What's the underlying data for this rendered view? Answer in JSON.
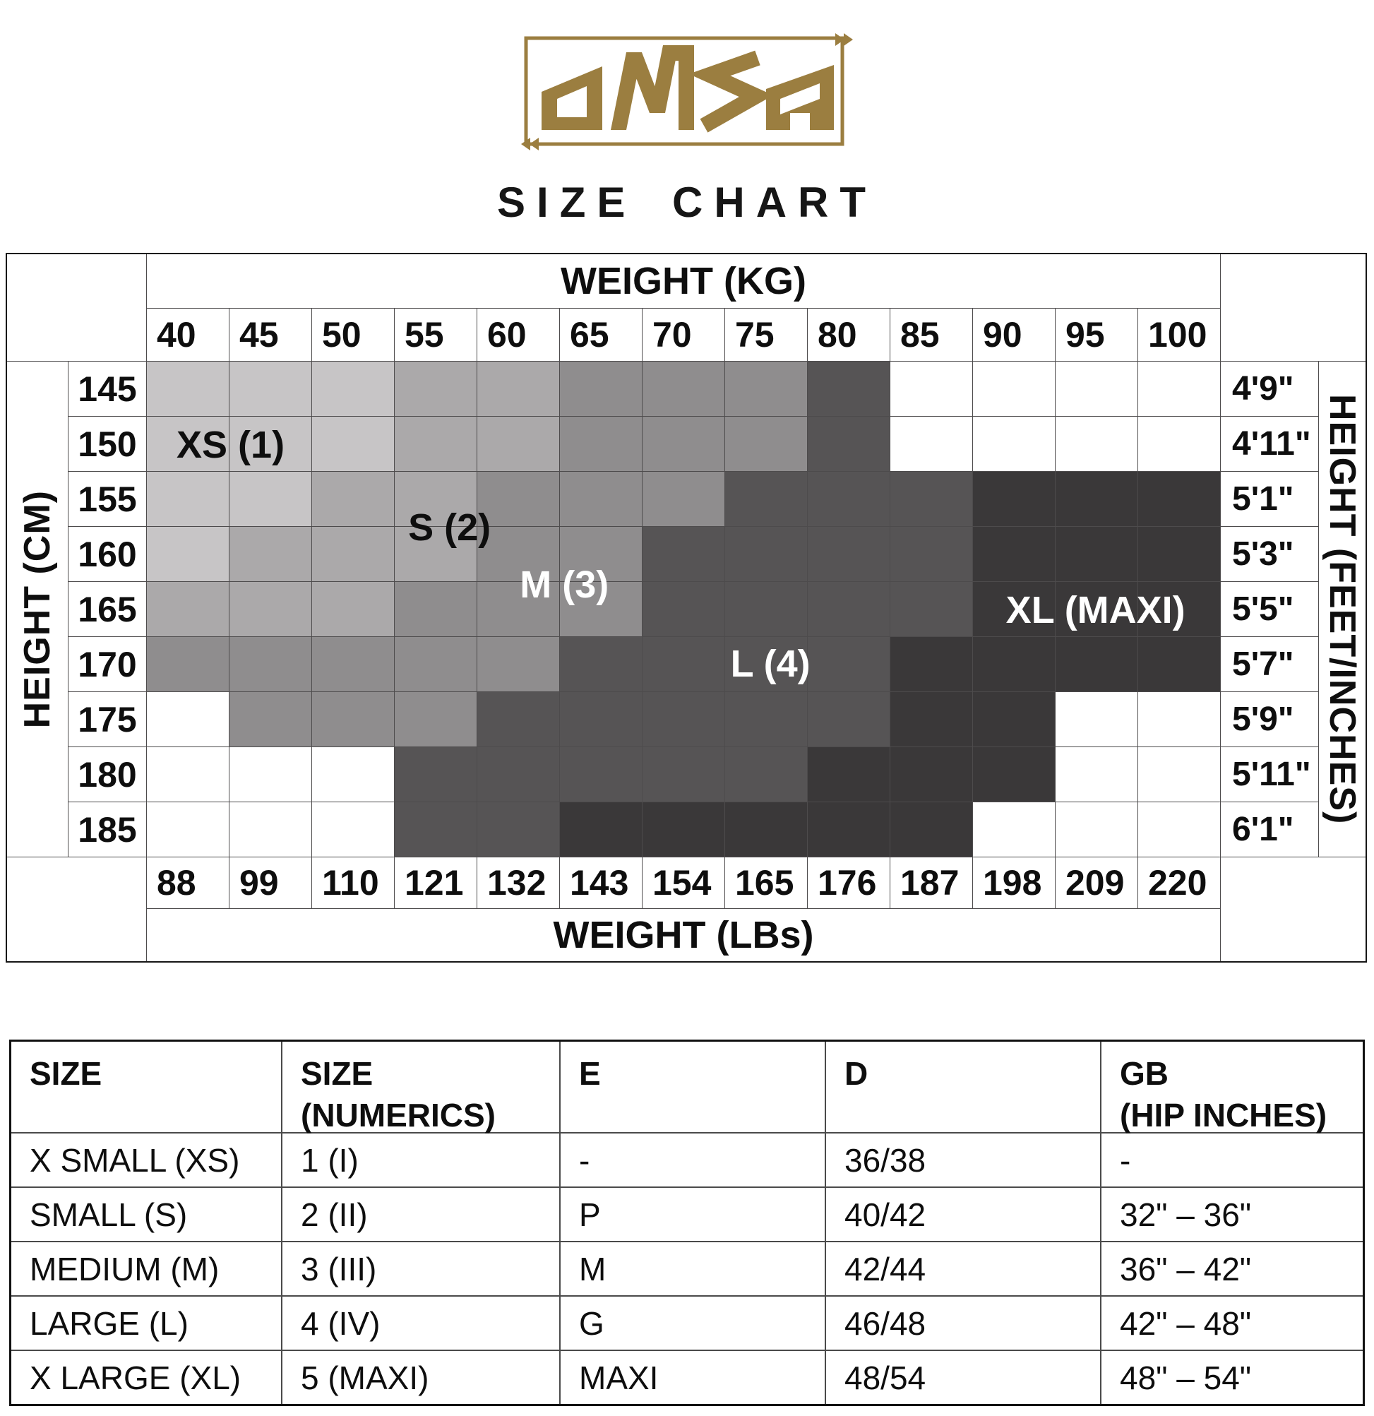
{
  "brand": {
    "name": "OMSA",
    "color": "#9B7E40"
  },
  "title": "SIZE CHART",
  "chart_data": {
    "type": "heatmap",
    "title": "SIZE CHART",
    "x_axis_top": {
      "label": "WEIGHT (KG)",
      "ticks": [
        "40",
        "45",
        "50",
        "55",
        "60",
        "65",
        "70",
        "75",
        "80",
        "85",
        "90",
        "95",
        "100"
      ]
    },
    "x_axis_bottom": {
      "label": "WEIGHT (LBs)",
      "ticks": [
        "88",
        "99",
        "110",
        "121",
        "132",
        "143",
        "154",
        "165",
        "176",
        "187",
        "198",
        "209",
        "220"
      ]
    },
    "y_axis_left": {
      "label": "HEIGHT (CM)",
      "ticks": [
        "145",
        "150",
        "155",
        "160",
        "165",
        "170",
        "175",
        "180",
        "185"
      ]
    },
    "y_axis_right": {
      "label": "HEIGHT (FEET/INCHES)",
      "ticks": [
        "4'9\"",
        "4'11\"",
        "5'1\"",
        "5'3\"",
        "5'5\"",
        "5'7\"",
        "5'9\"",
        "5'11\"",
        "6'1\""
      ]
    },
    "grid_on": true,
    "legend_position": "labels-inside-regions",
    "empty_color": "#FFFFFF",
    "palette": {
      "0": "#FFFFFF",
      "1": "#C7C5C6",
      "2": "#ABA9AA",
      "3": "#8F8D8E",
      "4": "#565455",
      "5": "#3A3839"
    },
    "sizes": [
      {
        "code": 1,
        "label": "XS (1)",
        "color": "#C7C5C6",
        "label_color": "#0e0e0e",
        "label_x": "7.8%",
        "label_y": "16.8%"
      },
      {
        "code": 2,
        "label": "S (2)",
        "color": "#ABA9AA",
        "label_color": "#0e0e0e",
        "label_x": "28.2%",
        "label_y": "33.5%"
      },
      {
        "code": 3,
        "label": "M (3)",
        "color": "#8F8D8E",
        "label_color": "#FFFFFF",
        "label_x": "38.9%",
        "label_y": "45.1%"
      },
      {
        "code": 4,
        "label": "L (4)",
        "color": "#565455",
        "label_color": "#FFFFFF",
        "label_x": "58.1%",
        "label_y": "61.1%"
      },
      {
        "code": 5,
        "label": "XL (MAXI)",
        "color": "#3A3839",
        "label_color": "#FFFFFF",
        "label_x": "88.4%",
        "label_y": "50.2%"
      }
    ],
    "matrix_rows_cm": [
      "145",
      "150",
      "155",
      "160",
      "165",
      "170",
      "175",
      "180",
      "185"
    ],
    "matrix_cols_kg": [
      "40",
      "45",
      "50",
      "55",
      "60",
      "65",
      "70",
      "75",
      "80",
      "85",
      "90",
      "95",
      "100"
    ],
    "matrix": [
      [
        1,
        1,
        1,
        2,
        2,
        3,
        3,
        3,
        4,
        0,
        0,
        0,
        0
      ],
      [
        1,
        1,
        1,
        2,
        2,
        3,
        3,
        3,
        4,
        0,
        0,
        0,
        0
      ],
      [
        1,
        1,
        2,
        2,
        3,
        3,
        3,
        4,
        4,
        4,
        5,
        5,
        5
      ],
      [
        1,
        2,
        2,
        2,
        3,
        3,
        4,
        4,
        4,
        4,
        5,
        5,
        5
      ],
      [
        2,
        2,
        2,
        3,
        3,
        3,
        4,
        4,
        4,
        4,
        5,
        5,
        5
      ],
      [
        3,
        3,
        3,
        3,
        3,
        4,
        4,
        4,
        4,
        5,
        5,
        5,
        5
      ],
      [
        0,
        3,
        3,
        3,
        4,
        4,
        4,
        4,
        4,
        5,
        5,
        0,
        0
      ],
      [
        0,
        0,
        0,
        4,
        4,
        4,
        4,
        4,
        5,
        5,
        5,
        0,
        0
      ],
      [
        0,
        0,
        0,
        4,
        4,
        5,
        5,
        5,
        5,
        5,
        0,
        0,
        0
      ]
    ]
  },
  "size_table": {
    "columns": [
      {
        "line1": "SIZE",
        "line2": ""
      },
      {
        "line1": "SIZE",
        "line2": "(NUMERICS)"
      },
      {
        "line1": "E",
        "line2": ""
      },
      {
        "line1": "D",
        "line2": ""
      },
      {
        "line1": "GB",
        "line2": "(HIP INCHES)"
      }
    ],
    "rows": [
      [
        "X SMALL (XS)",
        "1 (I)",
        "-",
        "36/38",
        "-"
      ],
      [
        "SMALL (S)",
        "2 (II)",
        "P",
        "40/42",
        "32\" – 36\""
      ],
      [
        "MEDIUM (M)",
        "3 (III)",
        "M",
        "42/44",
        "36\" – 42\""
      ],
      [
        "LARGE (L)",
        "4 (IV)",
        "G",
        "46/48",
        "42\" – 48\""
      ],
      [
        "X LARGE (XL)",
        "5 (MAXI)",
        "MAXI",
        "48/54",
        "48\" – 54\""
      ]
    ]
  }
}
